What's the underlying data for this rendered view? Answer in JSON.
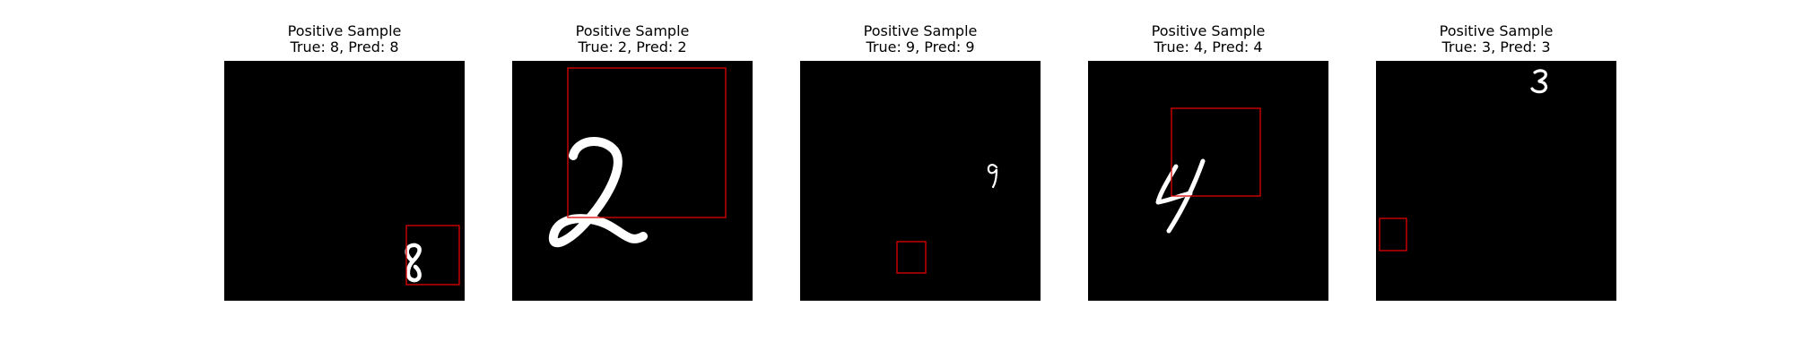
{
  "colors": {
    "background": "#ffffff",
    "image_bg": "#000000",
    "digit": "#ffffff",
    "box": "#e00000"
  },
  "panels": [
    {
      "title": "Positive Sample",
      "subtitle": "True: 8, Pred: 8"
    },
    {
      "title": "Positive Sample",
      "subtitle": "True: 2, Pred: 2"
    },
    {
      "title": "Positive Sample",
      "subtitle": "True: 9, Pred: 9"
    },
    {
      "title": "Positive Sample",
      "subtitle": "True: 4, Pred: 4"
    },
    {
      "title": "Positive Sample",
      "subtitle": "True: 3, Pred: 3"
    }
  ]
}
